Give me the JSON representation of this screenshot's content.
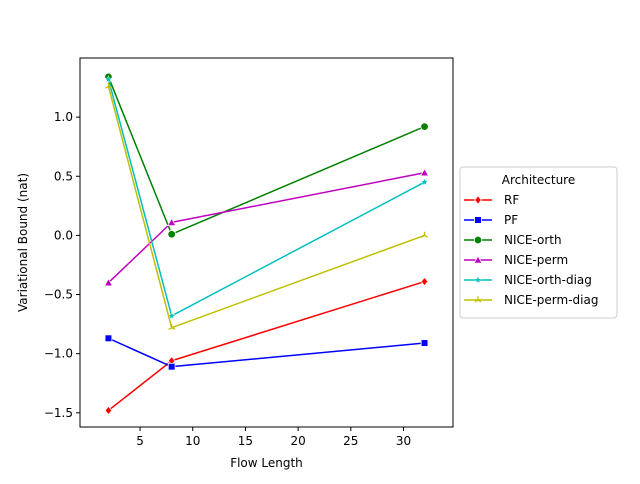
{
  "chart_data": {
    "type": "line",
    "xlabel": "Flow Length",
    "ylabel": "Variational Bound (nat)",
    "x": [
      2,
      8,
      32
    ],
    "xlim": [
      -0.7,
      34.7
    ],
    "ylim": [
      -1.62,
      1.5
    ],
    "xticks": [
      5,
      10,
      15,
      20,
      25,
      30
    ],
    "yticks": [
      -1.5,
      -1.0,
      -0.5,
      0.0,
      0.5,
      1.0
    ],
    "xtick_labels": [
      "5",
      "10",
      "15",
      "20",
      "25",
      "30"
    ],
    "ytick_labels": [
      "−1.5",
      "−1.0",
      "−0.5",
      "0.0",
      "0.5",
      "1.0"
    ],
    "grid": false,
    "legend": {
      "title": "Architecture",
      "placement": "center-right-outside"
    },
    "series": [
      {
        "name": "RF",
        "color": "#ff0000",
        "marker": "diamond",
        "values": [
          -1.48,
          -1.06,
          -0.39
        ]
      },
      {
        "name": "PF",
        "color": "#0000ff",
        "marker": "square",
        "values": [
          -0.87,
          -1.11,
          -0.91
        ]
      },
      {
        "name": "NICE-orth",
        "color": "#008000",
        "marker": "circle",
        "values": [
          1.34,
          0.01,
          0.92
        ]
      },
      {
        "name": "NICE-perm",
        "color": "#bf00bf",
        "marker": "triangle-up",
        "values": [
          -0.4,
          0.11,
          0.53
        ]
      },
      {
        "name": "NICE-orth-diag",
        "color": "#00bfbf",
        "marker": "star",
        "values": [
          1.32,
          -0.68,
          0.45
        ]
      },
      {
        "name": "NICE-perm-diag",
        "color": "#bfbf00",
        "marker": "tri",
        "values": [
          1.26,
          -0.78,
          0.0
        ]
      }
    ]
  }
}
